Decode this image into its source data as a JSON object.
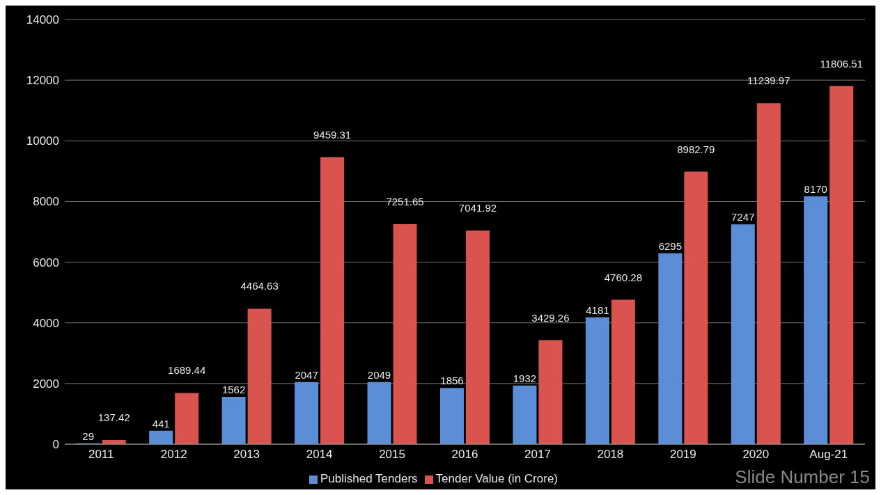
{
  "chart_data": {
    "type": "bar",
    "categories": [
      "2011",
      "2012",
      "2013",
      "2014",
      "2015",
      "2016",
      "2017",
      "2018",
      "2019",
      "2020",
      "Aug-21"
    ],
    "series": [
      {
        "name": "Published Tenders",
        "color": "#5b8ed6",
        "values": [
          29,
          441,
          1562,
          2047,
          2049,
          1856,
          1932,
          4181,
          6295,
          7247,
          8170
        ]
      },
      {
        "name": "Tender Value (in Crore)",
        "color": "#d9534f",
        "values": [
          137.42,
          1689.44,
          4464.63,
          9459.31,
          7251.65,
          7041.92,
          3429.26,
          4760.28,
          8982.79,
          11239.97,
          11806.51
        ]
      }
    ],
    "ylim": [
      0,
      14000
    ],
    "yticks": [
      0,
      2000,
      4000,
      6000,
      8000,
      10000,
      12000,
      14000
    ],
    "grid": "y",
    "legend": "bottom",
    "data_labels": true,
    "annotations": [
      "Slide Number 15"
    ]
  }
}
